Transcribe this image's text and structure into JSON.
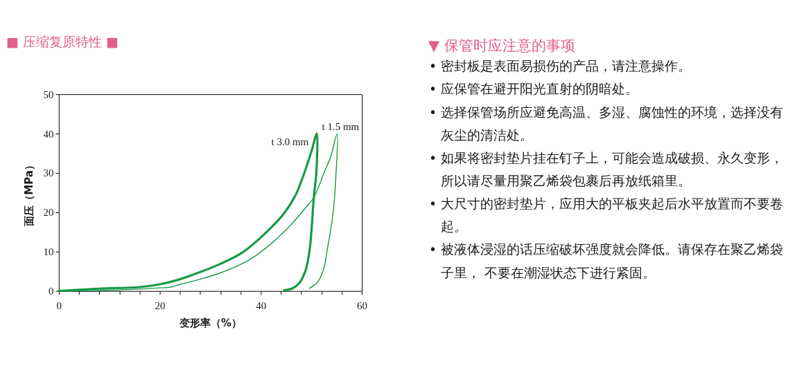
{
  "chart_data": [
    {
      "type": "line",
      "title": "■ 压缩复原特性 ■",
      "xlabel": "变形率（%）",
      "ylabel": "面压（MPa）",
      "line_style": "solid",
      "xlim": [
        0,
        60
      ],
      "xticks": [
        0,
        {
          "value": 4,
          "label": null
        },
        {
          "value": 8,
          "label": null
        },
        {
          "value": 12,
          "label": null
        },
        {
          "value": 16,
          "label": null
        },
        20,
        {
          "value": 24,
          "label": null
        },
        {
          "value": 28,
          "label": null
        },
        {
          "value": 32,
          "label": null
        },
        {
          "value": 36,
          "label": null
        },
        40,
        {
          "value": 44,
          "label": null
        },
        {
          "value": 48,
          "label": null
        },
        {
          "value": 52,
          "label": null
        },
        {
          "value": 56,
          "label": null
        },
        60
      ],
      "ylim": [
        0,
        50
      ],
      "yticks": [
        0,
        10,
        20,
        30,
        40,
        50
      ],
      "series": [
        {
          "name": "t 3.0 mm",
          "color": "#169a46",
          "x": [
            0,
            8,
            16,
            20,
            24,
            28,
            32,
            36.4,
            41,
            44.6,
            46.9,
            48.7,
            50.1,
            51.1,
            51.0,
            50.5,
            49.7,
            48.9,
            47.6,
            46.3,
            44.6
          ],
          "values": [
            0,
            0.6,
            1.0,
            1.7,
            3.0,
            4.8,
            6.9,
            9.8,
            14.8,
            19.7,
            24.4,
            30.3,
            35.8,
            40,
            30.3,
            23.8,
            10.8,
            5.4,
            2.0,
            0.7,
            0.2
          ]
        },
        {
          "name": "t 1.5 mm",
          "color": "#169a46",
          "x": [
            0,
            10,
            16,
            20,
            22.2,
            24,
            28,
            32,
            37.3,
            41,
            45.5,
            48.7,
            50.5,
            52.6,
            53.9,
            55.1,
            54.8,
            54.3,
            53.2,
            52.4,
            51.1,
            49.6
          ],
          "values": [
            0,
            0.2,
            0.5,
            0.8,
            1.0,
            1.7,
            3.0,
            4.6,
            7.6,
            10.9,
            16.2,
            20.9,
            23.8,
            30.3,
            34.4,
            40,
            27.9,
            19.7,
            10.8,
            5.4,
            2.0,
            0.7
          ]
        }
      ]
    },
    {
      "type": "other",
      "title": "▼ 保管时应注意的事项",
      "annotations": [
        "• 密封板是表面易损伤的产品，请注意操作。",
        "• 应保管在避开阳光直射的阴暗处。",
        "• 选择保管场所应避免高温、多湿、腐蚀性的环境，选择没有灰尘的清洁处。",
        "• 如果将密封垫片挂在钉子上，可能会造成破损、永久变形，所以请尽量用聚乙烯袋包裹后再放纸箱里。",
        "• 大尺寸的密封垫片，应用大的平板夹起后水平放置而不要卷起。",
        "• 被液体浸湿的话压缩破坏强度就会降低。请保存在聚乙烯袋子里， 不要在潮湿状态下进行紧固。"
      ]
    }
  ]
}
